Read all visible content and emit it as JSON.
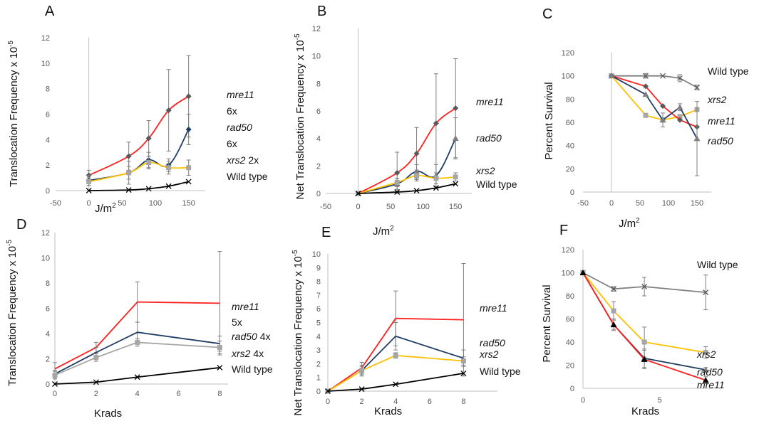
{
  "chart_data": [
    {
      "panel": "A",
      "type": "line",
      "xlabel": "J/m",
      "xlabel_sup": "2",
      "ylabel": "Translocation Frequency x 10",
      "ylabel_sup": "-5",
      "xlim": [
        -50,
        175
      ],
      "ylim": [
        0,
        12
      ],
      "xticks": [
        -50,
        0,
        50,
        100,
        150
      ],
      "yticks": [
        0,
        2,
        4,
        6,
        8,
        10,
        12
      ],
      "x": [
        0,
        60,
        90,
        120,
        150
      ],
      "series": [
        {
          "name": "mre11",
          "values": [
            1.2,
            2.7,
            4.1,
            6.3,
            7.4
          ],
          "color": "#ff2020",
          "marker": "diamond",
          "err": [
            0.4,
            1.1,
            1.4,
            3.2,
            3.2
          ]
        },
        {
          "name": "rad50",
          "values": [
            0.8,
            1.4,
            2.4,
            2.0,
            4.8
          ],
          "color": "#1f3d64",
          "marker": "diamond",
          "err": [
            0.4,
            0.9,
            0.6,
            0.5,
            1.2
          ]
        },
        {
          "name": "xrs2",
          "values": [
            0.7,
            1.4,
            2.2,
            1.8,
            1.8
          ],
          "color": "#ffc000",
          "marker": "square",
          "err": [
            0.3,
            0.5,
            0.5,
            0.5,
            0.6
          ]
        },
        {
          "name": "Wild type",
          "values": [
            0.0,
            0.05,
            0.15,
            0.35,
            0.7
          ],
          "color": "#000000",
          "marker": "x",
          "err": [
            0,
            0,
            0,
            0,
            0
          ]
        }
      ],
      "label_lines": [
        {
          "parts": [
            {
              "t": "mre11",
              "i": true
            }
          ]
        },
        {
          "parts": [
            {
              "t": "6x",
              "i": false
            }
          ]
        },
        {
          "parts": [
            {
              "t": "rad50",
              "i": true
            }
          ]
        },
        {
          "parts": [
            {
              "t": "6x",
              "i": false
            }
          ]
        },
        {
          "parts": [
            {
              "t": "xrs2",
              "i": true
            },
            {
              "t": " 2x",
              "i": false
            }
          ]
        },
        {
          "parts": [
            {
              "t": "Wild type",
              "i": false
            }
          ]
        }
      ]
    },
    {
      "panel": "B",
      "type": "line",
      "xlabel": "J/m",
      "xlabel_sup": "2",
      "ylabel": "Net Translocation Frequency x 10",
      "ylabel_sup": "-5",
      "xlim": [
        -50,
        175
      ],
      "ylim": [
        0,
        12
      ],
      "xticks": [
        -50,
        0,
        50,
        100,
        150
      ],
      "yticks": [
        0,
        2,
        4,
        6,
        8,
        10,
        12
      ],
      "x": [
        0,
        60,
        90,
        120,
        150
      ],
      "series": [
        {
          "name": "mre11",
          "values": [
            0.0,
            1.5,
            2.9,
            5.1,
            6.2
          ],
          "color": "#ff2020",
          "marker": "diamond",
          "err": [
            0,
            1.5,
            1.9,
            3.6,
            3.6
          ]
        },
        {
          "name": "rad50",
          "values": [
            0.0,
            0.7,
            1.6,
            1.3,
            4.0
          ],
          "color": "#1f3d64",
          "marker": "triangle",
          "err": [
            0,
            0.4,
            0.5,
            0.8,
            1.5
          ]
        },
        {
          "name": "xrs2",
          "values": [
            0.0,
            0.8,
            1.3,
            1.1,
            1.2
          ],
          "color": "#ffc000",
          "marker": "square",
          "err": [
            0,
            0.3,
            0.4,
            0.4,
            0.3
          ]
        },
        {
          "name": "Wild type",
          "values": [
            0.0,
            0.1,
            0.2,
            0.4,
            0.7
          ],
          "color": "#000000",
          "marker": "x",
          "err": [
            0,
            0,
            0,
            0,
            0
          ]
        }
      ],
      "label_lines": [
        {
          "parts": [
            {
              "t": "mre11",
              "i": true
            }
          ]
        },
        {
          "parts": [
            {
              "t": "rad50",
              "i": true
            }
          ]
        },
        {
          "parts": [
            {
              "t": "xrs2",
              "i": true
            }
          ]
        },
        {
          "parts": [
            {
              "t": "Wild type",
              "i": false
            }
          ]
        }
      ]
    },
    {
      "panel": "C",
      "type": "line",
      "xlabel": "J/m",
      "xlabel_sup": "2",
      "ylabel": "Percent Survival",
      "ylabel_sup": "",
      "xlim": [
        -50,
        175
      ],
      "ylim": [
        0,
        120
      ],
      "xticks": [
        -50,
        0,
        50,
        100,
        150
      ],
      "yticks": [
        0,
        20,
        40,
        60,
        80,
        100,
        120
      ],
      "x": [
        0,
        60,
        90,
        120,
        150
      ],
      "series": [
        {
          "name": "Wild type",
          "values": [
            100,
            100,
            100,
            98,
            90
          ],
          "color": "#7f7f7f",
          "marker": "x",
          "err": [
            0,
            2,
            0,
            3,
            2
          ]
        },
        {
          "name": "xrs2",
          "values": [
            100,
            66,
            62,
            65,
            71
          ],
          "color": "#ffc000",
          "marker": "square",
          "err": [
            0,
            0,
            0,
            0,
            0
          ]
        },
        {
          "name": "mre11",
          "values": [
            100,
            91,
            74,
            62,
            56
          ],
          "color": "#ff2020",
          "marker": "diamond",
          "err": [
            0,
            0,
            0,
            0,
            0
          ]
        },
        {
          "name": "rad50",
          "values": [
            100,
            84,
            62,
            73,
            46
          ],
          "color": "#1f3d64",
          "marker": "triangle",
          "err": [
            0,
            0,
            6,
            3,
            32
          ]
        }
      ],
      "label_lines": [
        {
          "parts": [
            {
              "t": "Wild type",
              "i": false
            }
          ]
        },
        {
          "parts": [
            {
              "t": "xrs2",
              "i": true
            }
          ]
        },
        {
          "parts": [
            {
              "t": "mre11",
              "i": true
            }
          ]
        },
        {
          "parts": [
            {
              "t": "rad50",
              "i": true
            }
          ]
        }
      ]
    },
    {
      "panel": "D",
      "type": "line",
      "xlabel": "Krads",
      "xlabel_sup": "",
      "ylabel": "Translocation Frequency x 10",
      "ylabel_sup": "-5",
      "xlim": [
        0,
        8.4
      ],
      "ylim": [
        0,
        12
      ],
      "xticks": [
        0,
        2,
        4,
        6,
        8
      ],
      "yticks": [
        0,
        2,
        4,
        6,
        8,
        10,
        12
      ],
      "x": [
        0,
        2,
        4,
        8
      ],
      "series": [
        {
          "name": "mre11",
          "values": [
            1.2,
            2.9,
            6.5,
            6.4
          ],
          "color": "#ff2020",
          "marker": "none",
          "err": [
            0.5,
            0.4,
            1.6,
            4.1
          ]
        },
        {
          "name": "rad50",
          "values": [
            0.8,
            2.5,
            4.1,
            3.2
          ],
          "color": "#1f3d64",
          "marker": "none",
          "err": [
            0.3,
            0.4,
            0.8,
            0.6
          ]
        },
        {
          "name": "xrs2",
          "values": [
            0.7,
            2.1,
            3.3,
            2.9
          ],
          "color": "#a6a6a6",
          "marker": "square",
          "err": [
            0.3,
            0.3,
            0.3,
            0.5
          ]
        },
        {
          "name": "Wild type",
          "values": [
            0.0,
            0.15,
            0.55,
            1.3
          ],
          "color": "#000000",
          "marker": "x",
          "err": [
            0,
            0,
            0,
            0
          ]
        }
      ],
      "label_lines": [
        {
          "parts": [
            {
              "t": "mre11",
              "i": true
            }
          ]
        },
        {
          "parts": [
            {
              "t": "5x",
              "i": false
            }
          ]
        },
        {
          "parts": [
            {
              "t": "rad50",
              "i": true
            },
            {
              "t": " 4x",
              "i": false
            }
          ]
        },
        {
          "parts": [
            {
              "t": "xrs2",
              "i": true
            },
            {
              "t": " 4x",
              "i": false
            }
          ]
        },
        {
          "parts": [
            {
              "t": "Wild type",
              "i": false
            }
          ]
        }
      ]
    },
    {
      "panel": "E",
      "type": "line",
      "xlabel": "Krads",
      "xlabel_sup": "",
      "ylabel": "Net Translocation Frequency x 10",
      "ylabel_sup": "-5",
      "xlim": [
        0,
        10
      ],
      "ylim": [
        0,
        10
      ],
      "xticks": [
        0,
        2,
        4,
        6,
        8
      ],
      "yticks": [
        0,
        1,
        2,
        3,
        4,
        5,
        6,
        7,
        8,
        9,
        10
      ],
      "x": [
        0,
        2,
        4,
        8
      ],
      "series": [
        {
          "name": "mre11",
          "values": [
            0.0,
            1.7,
            5.3,
            5.2
          ],
          "color": "#ff2020",
          "marker": "none",
          "err": [
            0,
            0.4,
            2.0,
            4.1
          ]
        },
        {
          "name": "rad50",
          "values": [
            0.0,
            1.5,
            4.0,
            2.4
          ],
          "color": "#1f3d64",
          "marker": "none",
          "err": [
            0,
            0.4,
            1.0,
            0.6
          ]
        },
        {
          "name": "xrs2",
          "values": [
            0.0,
            1.5,
            2.6,
            2.2
          ],
          "color": "#ffc000",
          "marker": "square",
          "err": [
            0,
            0.3,
            0.2,
            0.3
          ]
        },
        {
          "name": "Wild type",
          "values": [
            0.0,
            0.15,
            0.5,
            1.3
          ],
          "color": "#000000",
          "marker": "x",
          "err": [
            0,
            0,
            0,
            0
          ]
        }
      ],
      "label_lines": [
        {
          "parts": [
            {
              "t": "mre11",
              "i": true
            }
          ]
        },
        {
          "parts": [
            {
              "t": "rad50",
              "i": true
            }
          ]
        },
        {
          "parts": [
            {
              "t": "xrs2",
              "i": true
            }
          ]
        },
        {
          "parts": [
            {
              "t": "Wild type",
              "i": false
            }
          ]
        }
      ]
    },
    {
      "panel": "F",
      "type": "line",
      "xlabel": "Krads",
      "xlabel_sup": "",
      "ylabel": "Percent Survival",
      "ylabel_sup": "",
      "xlim": [
        0,
        8.5
      ],
      "ylim": [
        0,
        120
      ],
      "xticks": [
        0,
        5
      ],
      "yticks": [
        0,
        20,
        40,
        60,
        80,
        100,
        120
      ],
      "x": [
        0,
        2,
        4,
        8
      ],
      "series": [
        {
          "name": "Wild type",
          "values": [
            100,
            86,
            88,
            83
          ],
          "color": "#7f7f7f",
          "marker": "x",
          "err": [
            0,
            2,
            8,
            15
          ]
        },
        {
          "name": "xrs2",
          "values": [
            100,
            67,
            40,
            31
          ],
          "color": "#ffc000",
          "marker": "square",
          "err": [
            0,
            8,
            13,
            5
          ]
        },
        {
          "name": "rad50",
          "values": [
            100,
            55,
            26,
            16
          ],
          "color": "#1f3d64",
          "marker": "triangle",
          "err": [
            0,
            5,
            8,
            2
          ]
        },
        {
          "name": "mre11",
          "values": [
            100,
            55,
            25,
            7
          ],
          "color": "#ff2020",
          "marker": "triangle",
          "err": [
            0,
            4,
            8,
            3
          ]
        }
      ],
      "label_lines": [
        {
          "parts": [
            {
              "t": "Wild type",
              "i": false
            }
          ]
        },
        {
          "parts": [
            {
              "t": "xrs2",
              "i": true
            }
          ]
        },
        {
          "parts": [
            {
              "t": "rad50",
              "i": true
            }
          ]
        },
        {
          "parts": [
            {
              "t": "mre11",
              "i": true
            }
          ]
        }
      ]
    }
  ]
}
